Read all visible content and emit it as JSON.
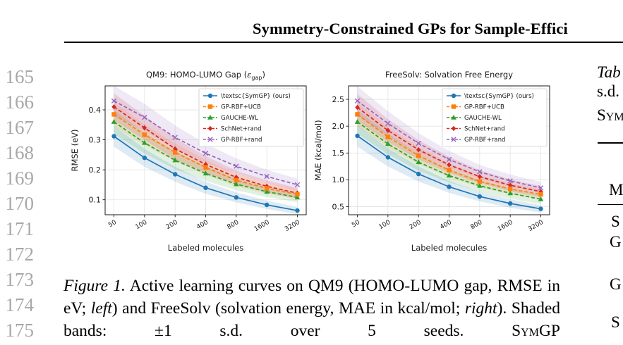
{
  "header": {
    "title": "Symmetry-Constrained GPs for Sample-Effici"
  },
  "line_numbers": [
    "165",
    "166",
    "167",
    "168",
    "169",
    "170",
    "171",
    "172",
    "173",
    "174",
    "175"
  ],
  "legend_labels": [
    "\\textsc{SymGP} (ours)",
    "GP-RBF+UCB",
    "GAUCHE-WL",
    "SchNet+rand",
    "GP-RBF+rand"
  ],
  "series_colors": [
    "#1f77b4",
    "#ff7f0e",
    "#2ca02c",
    "#d62728",
    "#9467bd"
  ],
  "chart_data": [
    {
      "type": "line",
      "title": "QM9: HOMO-LUMO Gap (",
      "title_symbol": "ε",
      "title_subscript": "gap",
      "title_close": ")",
      "xlabel": "Labeled molecules",
      "ylabel": "RMSE (eV)",
      "x": [
        50,
        100,
        200,
        400,
        800,
        1600,
        3200
      ],
      "x_tick_labels": [
        "50",
        "100",
        "200",
        "400",
        "800",
        "1600",
        "3200"
      ],
      "x_scale": "log",
      "y_ticks": [
        0.1,
        0.2,
        0.3,
        0.4
      ],
      "y_tick_labels": [
        "0.1",
        "0.2",
        "0.3",
        "0.4"
      ],
      "ylim": [
        0.05,
        0.48
      ],
      "grid": true,
      "legend_position": "top-right",
      "band": "±1 s.d.",
      "series": [
        {
          "name": "\\textsc{SymGP} (ours)",
          "values": [
            0.312,
            0.24,
            0.185,
            0.14,
            0.108,
            0.083,
            0.064
          ],
          "sd": [
            0.035,
            0.03,
            0.025,
            0.02,
            0.017,
            0.014,
            0.012
          ]
        },
        {
          "name": "GP-RBF+UCB",
          "values": [
            0.385,
            0.317,
            0.258,
            0.208,
            0.165,
            0.138,
            0.118
          ],
          "sd": [
            0.04,
            0.035,
            0.03,
            0.025,
            0.02,
            0.018,
            0.016
          ]
        },
        {
          "name": "GAUCHE-WL",
          "values": [
            0.36,
            0.29,
            0.232,
            0.188,
            0.152,
            0.127,
            0.108
          ],
          "sd": [
            0.04,
            0.035,
            0.03,
            0.025,
            0.02,
            0.018,
            0.016
          ]
        },
        {
          "name": "SchNet+rand",
          "values": [
            0.41,
            0.34,
            0.27,
            0.218,
            0.175,
            0.145,
            0.122
          ],
          "sd": [
            0.045,
            0.04,
            0.035,
            0.028,
            0.022,
            0.02,
            0.018
          ]
        },
        {
          "name": "GP-RBF+rand",
          "values": [
            0.43,
            0.375,
            0.308,
            0.255,
            0.212,
            0.178,
            0.15
          ],
          "sd": [
            0.05,
            0.045,
            0.04,
            0.032,
            0.026,
            0.022,
            0.02
          ]
        }
      ]
    },
    {
      "type": "line",
      "title": "FreeSolv: Solvation Free Energy",
      "xlabel": "Labeled molecules",
      "ylabel": "MAE (kcal/mol)",
      "x": [
        50,
        100,
        200,
        400,
        800,
        1600,
        3200
      ],
      "x_tick_labels": [
        "50",
        "100",
        "200",
        "400",
        "800",
        "1600",
        "3200"
      ],
      "x_scale": "log",
      "y_ticks": [
        0.5,
        1.0,
        1.5,
        2.0,
        2.5
      ],
      "y_tick_labels": [
        "0.5",
        "1.0",
        "1.5",
        "2.0",
        "2.5"
      ],
      "ylim": [
        0.35,
        2.75
      ],
      "grid": true,
      "legend_position": "top-right",
      "band": "±1 s.d.",
      "series": [
        {
          "name": "\\textsc{SymGP} (ours)",
          "values": [
            1.82,
            1.42,
            1.11,
            0.87,
            0.69,
            0.56,
            0.46
          ],
          "sd": [
            0.2,
            0.17,
            0.14,
            0.11,
            0.09,
            0.08,
            0.07
          ]
        },
        {
          "name": "GP-RBF+UCB",
          "values": [
            2.22,
            1.8,
            1.45,
            1.18,
            0.97,
            0.83,
            0.73
          ],
          "sd": [
            0.22,
            0.19,
            0.16,
            0.13,
            0.11,
            0.1,
            0.09
          ]
        },
        {
          "name": "GAUCHE-WL",
          "values": [
            2.08,
            1.67,
            1.33,
            1.08,
            0.89,
            0.75,
            0.64
          ],
          "sd": [
            0.22,
            0.19,
            0.16,
            0.13,
            0.11,
            0.1,
            0.09
          ]
        },
        {
          "name": "SchNet+rand",
          "values": [
            2.35,
            1.92,
            1.56,
            1.28,
            1.06,
            0.9,
            0.78
          ],
          "sd": [
            0.25,
            0.21,
            0.18,
            0.15,
            0.12,
            0.11,
            0.1
          ]
        },
        {
          "name": "GP-RBF+rand",
          "values": [
            2.47,
            2.05,
            1.68,
            1.38,
            1.15,
            0.98,
            0.85
          ],
          "sd": [
            0.27,
            0.23,
            0.19,
            0.16,
            0.13,
            0.12,
            0.11
          ]
        }
      ]
    }
  ],
  "caption": {
    "line1_label": "Figure 1.",
    "line1_text": "Active learning curves on QM9 (HOMO-LUMO gap,",
    "line2_a": "RMSE in eV; ",
    "line2_left": "left",
    "line2_b": ") and FreeSolv (solvation energy, MAE in",
    "line3_a": "kcal/mol; ",
    "line3_right": "right",
    "line3_b": "). Shaded bands: ±1 s.d. over 5 seeds. ",
    "line3_sc": "SymGP"
  },
  "side_column": {
    "table_label": "Tab",
    "line2": "s.d.",
    "line3": "Sym",
    "col_header": "M",
    "row1": "S",
    "row2": "G",
    "row3": "G",
    "row4": "S"
  }
}
